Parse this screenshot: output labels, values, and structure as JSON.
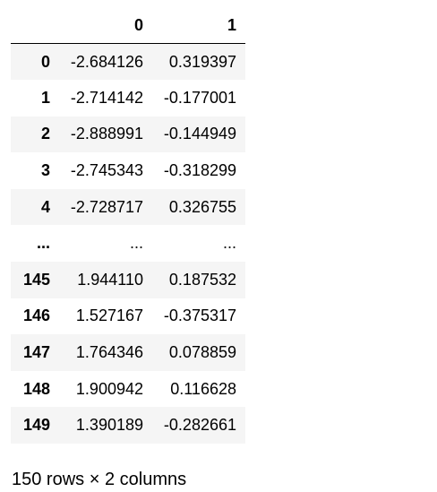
{
  "table": {
    "columns": [
      "0",
      "1"
    ],
    "rows": [
      {
        "index": "0",
        "values": [
          "-2.684126",
          "0.319397"
        ]
      },
      {
        "index": "1",
        "values": [
          "-2.714142",
          "-0.177001"
        ]
      },
      {
        "index": "2",
        "values": [
          "-2.888991",
          "-0.144949"
        ]
      },
      {
        "index": "3",
        "values": [
          "-2.745343",
          "-0.318299"
        ]
      },
      {
        "index": "4",
        "values": [
          "-2.728717",
          "0.326755"
        ]
      },
      {
        "index": "...",
        "values": [
          "...",
          "..."
        ]
      },
      {
        "index": "145",
        "values": [
          "1.944110",
          "0.187532"
        ]
      },
      {
        "index": "146",
        "values": [
          "1.527167",
          "-0.375317"
        ]
      },
      {
        "index": "147",
        "values": [
          "1.764346",
          "0.078859"
        ]
      },
      {
        "index": "148",
        "values": [
          "1.900942",
          "0.116628"
        ]
      },
      {
        "index": "149",
        "values": [
          "1.390189",
          "-0.282661"
        ]
      }
    ]
  },
  "caption": "150 rows × 2 columns",
  "colors": {
    "stripe": "#f5f5f5",
    "background": "#ffffff",
    "text": "#000000"
  }
}
